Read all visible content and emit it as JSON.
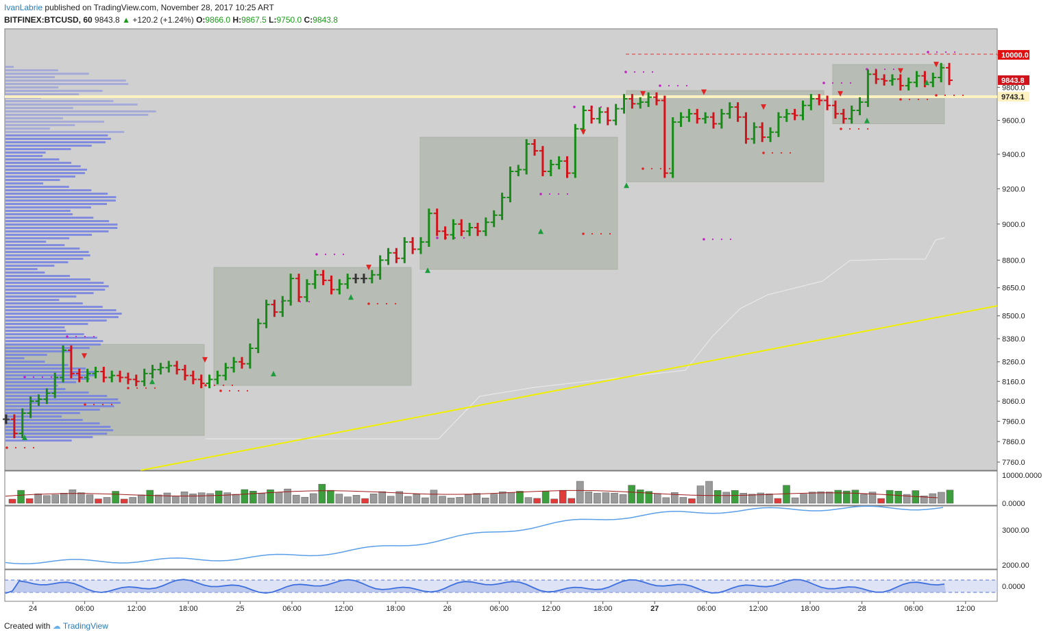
{
  "header": {
    "author": "IvanLabrie",
    "published_text": "published on TradingView.com, November 28, 2017 10:25 ART",
    "symbol": "BITFINEX:BTCUSD, 60",
    "last": "9843.8",
    "change": "+120.2 (+1.24%)",
    "o_label": "O:",
    "o_value": "9866.0",
    "h_label": "H:",
    "h_value": "9867.5",
    "l_label": "L:",
    "l_value": "9750.0",
    "c_label": "C:",
    "c_value": "9843.8"
  },
  "footer": {
    "created_with": "Created with",
    "brand": "TradingView"
  },
  "colors": {
    "up": "#178a17",
    "down": "#d0131b",
    "neutral": "#333333",
    "box": "#a4ae9e",
    "trend": "#f0ef00",
    "profile": "#7380e0",
    "rsi": "#5a9ee8",
    "osc": "#4a7ee0"
  },
  "chart_data": {
    "type": "bar",
    "title": "BITFINEX:BTCUSD, 60",
    "price_axis": {
      "ticks": [
        "10000.0",
        "9800.0",
        "9600.0",
        "9400.0",
        "9200.0",
        "9000.0",
        "8800.0",
        "8650.0",
        "8500.0",
        "8380.0",
        "8260.0",
        "8160.0",
        "8060.0",
        "7960.0",
        "7860.0",
        "7760.0"
      ],
      "scale": "log"
    },
    "time_axis": {
      "ticks": [
        "24",
        "06:00",
        "12:00",
        "18:00",
        "25",
        "06:00",
        "12:00",
        "18:00",
        "26",
        "06:00",
        "12:00",
        "18:00",
        "27",
        "06:00",
        "12:00",
        "18:00",
        "28",
        "06:00",
        "12:00"
      ]
    },
    "markers": {
      "resistance": "10000.0",
      "last_price": "9843.8",
      "level": "9743.1"
    },
    "ohlc_closes": [
      7970,
      7900,
      8000,
      8060,
      8070,
      8100,
      8180,
      8320,
      8200,
      8180,
      8200,
      8210,
      8180,
      8190,
      8180,
      8170,
      8160,
      8200,
      8220,
      8230,
      8240,
      8220,
      8190,
      8170,
      8150,
      8170,
      8190,
      8230,
      8260,
      8250,
      8330,
      8460,
      8560,
      8520,
      8580,
      8700,
      8600,
      8670,
      8720,
      8690,
      8640,
      8670,
      8700,
      8700,
      8700,
      8720,
      8800,
      8840,
      8810,
      8900,
      8860,
      8900,
      9060,
      8960,
      8940,
      9000,
      8960,
      8980,
      8960,
      9010,
      9050,
      9150,
      9300,
      9310,
      9460,
      9420,
      9300,
      9340,
      9360,
      9290,
      9550,
      9660,
      9610,
      9650,
      9600,
      9670,
      9730,
      9700,
      9710,
      9740,
      9720,
      9290,
      9590,
      9620,
      9640,
      9610,
      9620,
      9580,
      9640,
      9680,
      9620,
      9490,
      9560,
      9500,
      9530,
      9620,
      9640,
      9630,
      9690,
      9730,
      9720,
      9690,
      9640,
      9610,
      9660,
      9710,
      9880,
      9850,
      9840,
      9850,
      9810,
      9830,
      9870,
      9830,
      9860,
      9920,
      9843
    ],
    "volume_axis": {
      "ticks": [
        "10000.0000",
        "0.0000"
      ]
    },
    "indicator1_axis": {
      "ticks": [
        "3000.00",
        "2000.00"
      ]
    },
    "indicator2_axis": {
      "ticks": [
        "0.0000"
      ]
    }
  }
}
